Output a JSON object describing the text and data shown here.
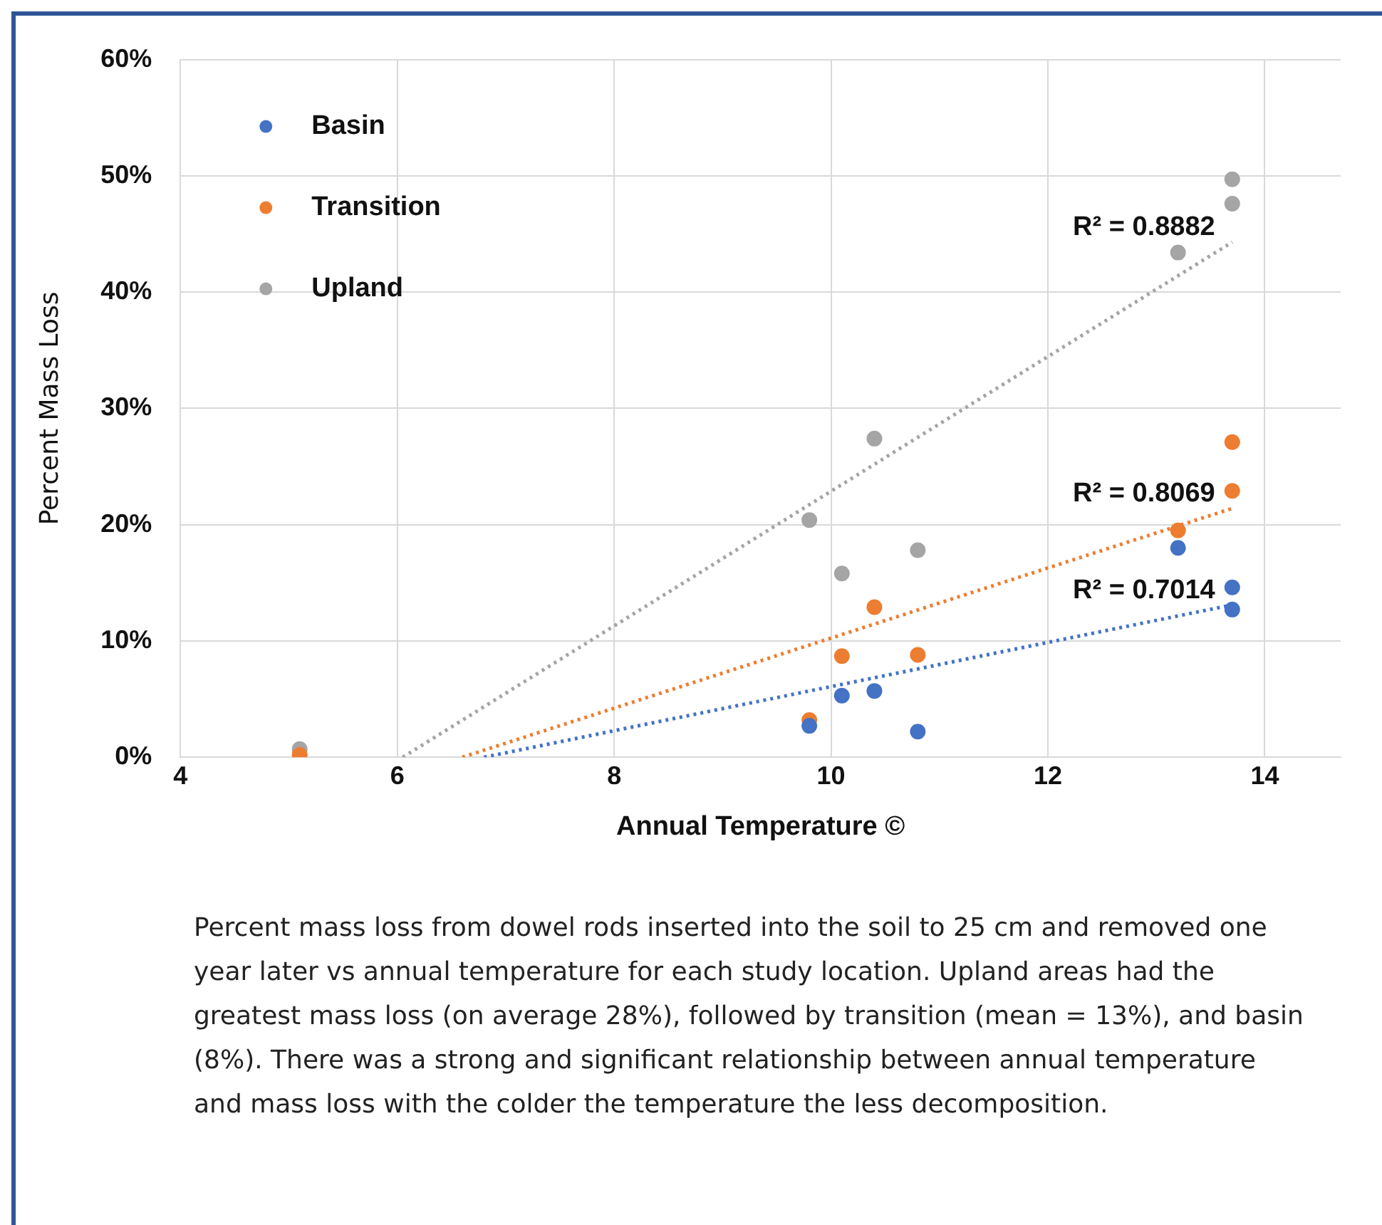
{
  "chart_data": {
    "type": "scatter",
    "xlabel": "Annual Temperature ©",
    "ylabel": "Percent Mass Loss",
    "xlim": [
      4,
      14.7
    ],
    "xticks": [
      4,
      6,
      8,
      10,
      12,
      14
    ],
    "ylim": [
      0,
      60
    ],
    "yticks": [
      {
        "value": 0,
        "label": "0%"
      },
      {
        "value": 10,
        "label": "10%"
      },
      {
        "value": 20,
        "label": "20%"
      },
      {
        "value": 30,
        "label": "30%"
      },
      {
        "value": 40,
        "label": "40%"
      },
      {
        "value": 50,
        "label": "50%"
      },
      {
        "value": 60,
        "label": "60%"
      }
    ],
    "grid": true,
    "legend": "top left",
    "marker": "circle",
    "series": [
      {
        "name": "Basin",
        "color": "#4472c4",
        "x": [
          9.8,
          10.1,
          10.4,
          10.8,
          13.2,
          13.7,
          13.7
        ],
        "values": [
          2.7,
          5.3,
          5.7,
          2.2,
          18.0,
          14.6,
          12.7
        ]
      },
      {
        "name": "Transition",
        "color": "#ed7d31",
        "x": [
          5.1,
          9.8,
          10.1,
          10.4,
          10.8,
          13.2,
          13.7,
          13.7
        ],
        "values": [
          0.2,
          3.2,
          8.7,
          12.9,
          8.8,
          19.5,
          27.1,
          22.9
        ]
      },
      {
        "name": "Upland",
        "color": "#a5a5a5",
        "x": [
          5.1,
          9.8,
          10.1,
          10.4,
          10.8,
          13.2,
          13.7,
          13.7
        ],
        "values": [
          0.7,
          20.4,
          15.8,
          27.4,
          17.8,
          43.4,
          47.6,
          49.7
        ]
      },
      {
        "type": "line",
        "line_style": "dotted",
        "marker": "none",
        "color": "#a5a5a5",
        "x": [
          6.05,
          13.7
        ],
        "values": [
          0,
          44.3
        ]
      },
      {
        "type": "line",
        "line_style": "dotted",
        "marker": "none",
        "color": "#ed7d31",
        "x": [
          6.6,
          13.7
        ],
        "values": [
          0,
          21.4
        ]
      },
      {
        "type": "line",
        "line_style": "dotted",
        "marker": "none",
        "color": "#4472c4",
        "x": [
          6.8,
          13.7
        ],
        "values": [
          0,
          13.1
        ]
      }
    ],
    "annotations": [
      "R² = 0.8882",
      "R² = 0.8069",
      "R² = 0.7014",
      "Percent mass loss from dowel rods inserted into the soil to 25 cm and removed one year later vs annual temperature for each study location. Upland areas had the greatest mass loss (on average 28%), followed by transition (mean = 13%), and basin (8%). There was a strong and significant relationship between annual temperature and mass loss with the colder the temperature the less decomposition."
    ]
  }
}
